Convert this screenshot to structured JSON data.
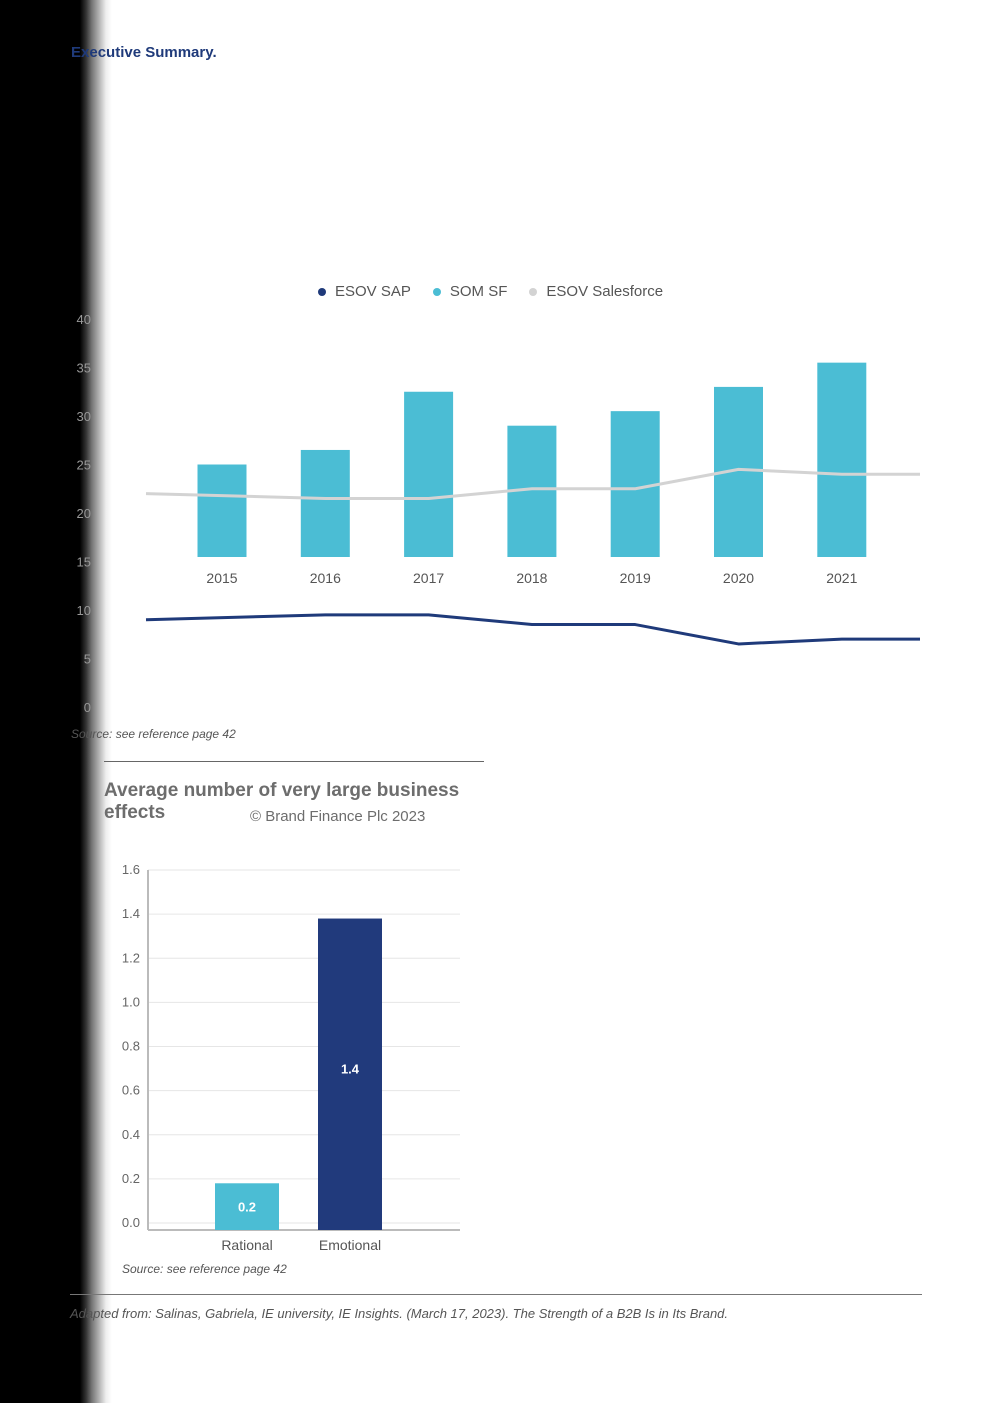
{
  "header": {
    "title": "Executive Summary."
  },
  "chart_data": [
    {
      "type": "bar",
      "title": "",
      "categories": [
        "2015",
        "2016",
        "2017",
        "2018",
        "2019",
        "2020",
        "2021"
      ],
      "series": [
        {
          "name": "SOM SF",
          "type": "bar",
          "values": [
            25,
            26.5,
            32.5,
            29,
            30.5,
            33,
            35.5
          ]
        },
        {
          "name": "ESOV SAP",
          "type": "line",
          "values": [
            9,
            9.5,
            9.5,
            8.5,
            8.5,
            6.5,
            7
          ]
        },
        {
          "name": "ESOV Salesforce",
          "type": "line",
          "values": [
            22,
            21.5,
            21.5,
            22.5,
            22.5,
            24.5,
            24
          ]
        }
      ],
      "y_ticks": [
        "0",
        "5",
        "10",
        "15",
        "20",
        "25",
        "30",
        "35",
        "40"
      ],
      "ylim": [
        0,
        40
      ],
      "legend_position": "top-center",
      "colors": {
        "ESOV SAP": "#1f3a7a",
        "SOM SF": "#4bbdd4",
        "ESOV Salesforce": "#d3d3d3"
      }
    },
    {
      "type": "bar",
      "title": "Average number of very large business effects",
      "categories": [
        "Rational",
        "Emotional"
      ],
      "values": [
        0.2,
        1.4
      ],
      "true_values": [
        0.18,
        1.38
      ],
      "data_labels": [
        "0.2",
        "1.4"
      ],
      "y_ticks": [
        "0.0",
        "0.2",
        "0.4",
        "0.6",
        "0.8",
        "1.0",
        "1.2",
        "1.4",
        "1.6"
      ],
      "ylim": [
        0,
        1.6
      ],
      "grid": true,
      "colors": [
        "#4bbdd4",
        "#213a7c"
      ]
    }
  ],
  "chart1_legend": [
    {
      "label": "ESOV SAP",
      "color": "#1f3a7a"
    },
    {
      "label": "SOM SF",
      "color": "#4bbdd4"
    },
    {
      "label": "ESOV Salesforce",
      "color": "#d3d3d3"
    }
  ],
  "chart1_source": "Source: see reference page 42",
  "chart2_copyright": "© Brand Finance Plc 2023",
  "chart2_source": "Source: see reference page 42",
  "footer_note": "Adapted from: Salinas, Gabriela, IE university, IE Insights. (March 17, 2023). The Strength of a B2B Is in Its Brand."
}
